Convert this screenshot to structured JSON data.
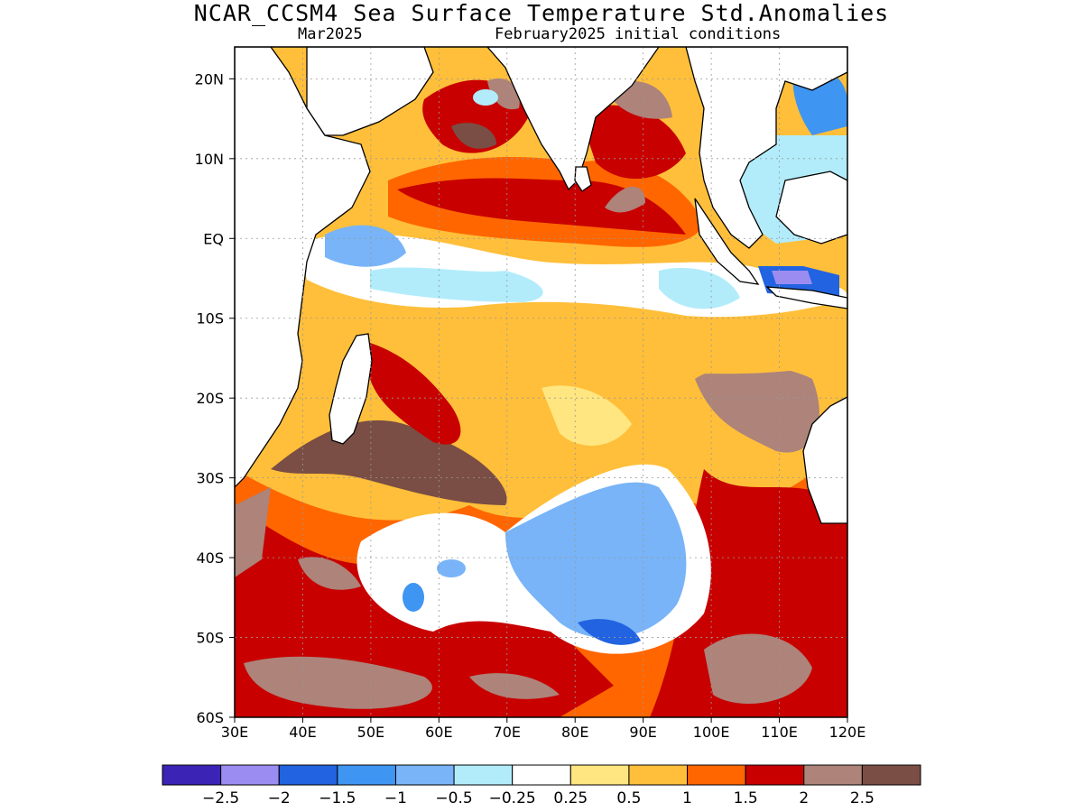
{
  "title": "NCAR_CCSM4 Sea Surface Temperature Std.Anomalies",
  "subtitle_left": "Mar2025",
  "subtitle_right": "February2025 initial conditions",
  "map": {
    "lon_range": [
      30,
      120
    ],
    "lat_range": [
      -60,
      24
    ],
    "x_tick_labels": [
      "30E",
      "40E",
      "50E",
      "60E",
      "70E",
      "80E",
      "90E",
      "100E",
      "110E",
      "120E"
    ],
    "y_tick_labels": [
      "20N",
      "10N",
      "EQ",
      "10S",
      "20S",
      "30S",
      "40S",
      "50S",
      "60S"
    ]
  },
  "colorbar": {
    "colors": [
      "#3a23b5",
      "#9b8cf2",
      "#2163e0",
      "#3f95f2",
      "#78b4f7",
      "#b2ecfb",
      "#ffffff",
      "#ffe680",
      "#ffbf3a",
      "#ff6600",
      "#c80000",
      "#ad837a",
      "#7a4e44"
    ],
    "labels": [
      "−2.5",
      "−2",
      "−1.5",
      "−1",
      "−0.5",
      "−0.25",
      "0.25",
      "0.5",
      "1",
      "1.5",
      "2",
      "2.5"
    ]
  }
}
